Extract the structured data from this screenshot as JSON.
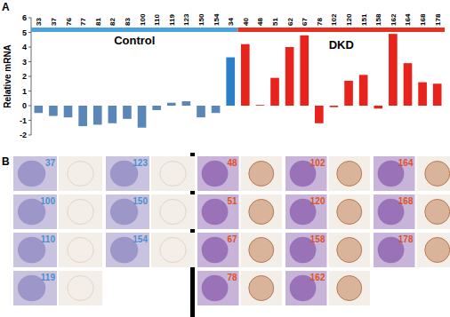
{
  "chart_data": {
    "type": "bar",
    "y_label": "Relative mRNA",
    "categories": [
      "33",
      "37",
      "76",
      "77",
      "81",
      "82",
      "83",
      "100",
      "110",
      "119",
      "123",
      "150",
      "154",
      "34",
      "40",
      "48",
      "51",
      "62",
      "67",
      "78",
      "102",
      "120",
      "151",
      "158",
      "162",
      "164",
      "168",
      "178"
    ],
    "values": [
      -0.5,
      -0.7,
      -0.8,
      -1.4,
      -1.3,
      -1.2,
      -0.9,
      -1.5,
      -0.3,
      0.2,
      0.3,
      -0.8,
      -0.5,
      3.3,
      4.2,
      0.05,
      1.9,
      4.0,
      4.8,
      -1.2,
      -0.1,
      1.7,
      2.1,
      -0.2,
      4.9,
      2.9,
      1.6,
      1.5
    ],
    "colors": [
      "#5b86b8",
      "#5b86b8",
      "#5b86b8",
      "#5b86b8",
      "#5b86b8",
      "#5b86b8",
      "#5b86b8",
      "#5b86b8",
      "#5b86b8",
      "#5b86b8",
      "#5b86b8",
      "#5b86b8",
      "#5b86b8",
      "#2a7fc8",
      "#e8231c",
      "#e8231c",
      "#e8231c",
      "#e8231c",
      "#e8231c",
      "#e8231c",
      "#e8231c",
      "#e8231c",
      "#e8231c",
      "#e8231c",
      "#e8231c",
      "#e8231c",
      "#e8231c",
      "#e8231c"
    ],
    "groups": [
      {
        "name": "Control",
        "color": "#4aa3df",
        "span": 14
      },
      {
        "name": "DKD",
        "color": "#e83020",
        "span": 14
      }
    ],
    "ylim": [
      -2,
      6
    ],
    "yticks": [
      -2,
      -1,
      0,
      1,
      2,
      3,
      4,
      5,
      6
    ],
    "grid": false
  },
  "figure": {
    "panel_labels": [
      "A",
      "B"
    ],
    "panel_b": {
      "groups": [
        {
          "name": "Control",
          "color": "#4a90d0",
          "rows": [
            [
              "37",
              "123"
            ],
            [
              "100",
              "150"
            ],
            [
              "110",
              "154"
            ],
            [
              "119"
            ]
          ]
        },
        {
          "name": "DKD",
          "color": "#e0521c",
          "rows": [
            [
              "48",
              "102",
              "164"
            ],
            [
              "51",
              "120",
              "168"
            ],
            [
              "67",
              "158",
              "178"
            ],
            [
              "78",
              "162"
            ]
          ]
        }
      ]
    }
  }
}
